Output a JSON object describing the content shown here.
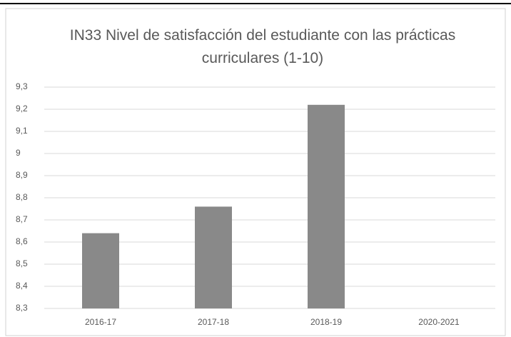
{
  "chart_data": {
    "type": "bar",
    "title": "IN33 Nivel de satisfacción del estudiante con las prácticas curriculares (1-10)",
    "categories": [
      "2016-17",
      "2017-18",
      "2018-19",
      "2020-2021"
    ],
    "values": [
      8.64,
      8.76,
      9.22,
      null
    ],
    "color": "#898989",
    "ylim": [
      8.3,
      9.3
    ],
    "yticks": [
      {
        "value": 8.3,
        "label": "8,3"
      },
      {
        "value": 8.4,
        "label": "8,4"
      },
      {
        "value": 8.5,
        "label": "8,5"
      },
      {
        "value": 8.6,
        "label": "8,6"
      },
      {
        "value": 8.7,
        "label": "8,7"
      },
      {
        "value": 8.8,
        "label": "8,8"
      },
      {
        "value": 8.9,
        "label": "8,9"
      },
      9,
      {
        "value": 9.1,
        "label": "9,1"
      },
      {
        "value": 9.2,
        "label": "9,2"
      },
      {
        "value": 9.3,
        "label": "9,3"
      }
    ],
    "grid": true
  }
}
